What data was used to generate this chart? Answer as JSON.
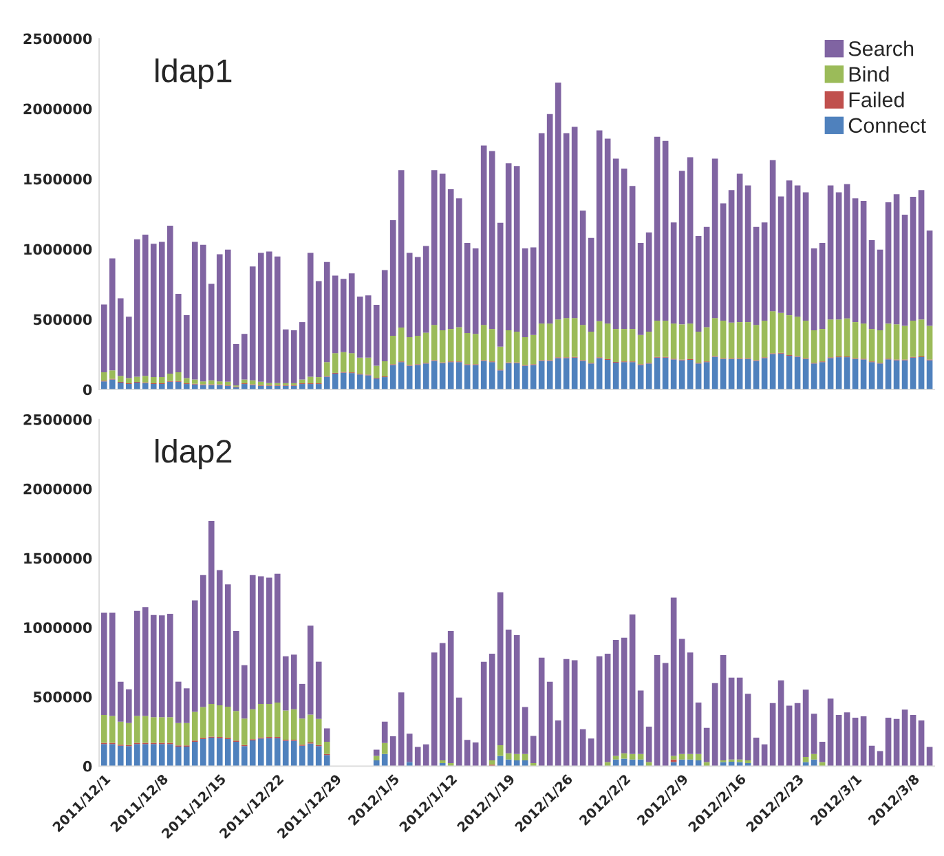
{
  "chart_data": [
    {
      "type": "bar",
      "title": "ldap1",
      "stacked": true,
      "legend": "top right",
      "tick_labels": "y",
      "categories": [
        "2011/12/1",
        null,
        null,
        null,
        null,
        null,
        null,
        "2011/12/8",
        null,
        null,
        null,
        null,
        null,
        null,
        "2011/12/15",
        null,
        null,
        null,
        null,
        null,
        null,
        "2011/12/22",
        null,
        null,
        null,
        null,
        null,
        null,
        "2011/12/29",
        null,
        null,
        null,
        null,
        null,
        null,
        "2012/1/5",
        null,
        null,
        null,
        null,
        null,
        null,
        "2012/1/12",
        null,
        null,
        null,
        null,
        null,
        null,
        "2012/1/19",
        null,
        null,
        null,
        null,
        null,
        null,
        "2012/1/26",
        null,
        null,
        null,
        null,
        null,
        null,
        "2012/2/2",
        null,
        null,
        null,
        null,
        null,
        null,
        "2012/2/9",
        null,
        null,
        null,
        null,
        null,
        null,
        "2012/2/16",
        null,
        null,
        null,
        null,
        null,
        null,
        "2012/2/23",
        null,
        null,
        null,
        null,
        null,
        null,
        "2012/3/1",
        null,
        null,
        null,
        null,
        null,
        null,
        "2012/3/8",
        null,
        null
      ],
      "ylim": [
        0,
        2500000
      ],
      "yticks": [
        0,
        500000,
        1000000,
        1500000,
        2000000,
        2500000
      ],
      "series": [
        {
          "name": "Connect",
          "color": "#4f81bd",
          "values": [
            58000,
            71000,
            49000,
            39000,
            49000,
            45000,
            39000,
            39000,
            55000,
            55000,
            39000,
            36000,
            32000,
            32000,
            32000,
            26000,
            16000,
            39000,
            32000,
            26000,
            26000,
            26000,
            26000,
            26000,
            39000,
            39000,
            39000,
            91000,
            113000,
            120000,
            117000,
            107000,
            101000,
            78000,
            88000,
            175000,
            195000,
            169000,
            175000,
            185000,
            204000,
            188000,
            195000,
            195000,
            175000,
            175000,
            204000,
            195000,
            136000,
            188000,
            188000,
            169000,
            175000,
            204000,
            204000,
            224000,
            224000,
            227000,
            204000,
            185000,
            224000,
            211000,
            191000,
            195000,
            195000,
            175000,
            185000,
            227000,
            227000,
            214000,
            208000,
            211000,
            185000,
            195000,
            233000,
            217000,
            217000,
            217000,
            217000,
            204000,
            224000,
            253000,
            256000,
            240000,
            233000,
            217000,
            185000,
            195000,
            224000,
            230000,
            230000,
            217000,
            214000,
            195000,
            185000,
            214000,
            208000,
            208000,
            227000,
            230000,
            208000
          ]
        },
        {
          "name": "Failed",
          "color": "#c0504d",
          "values": [
            5000,
            5000,
            5000,
            5000,
            5000,
            5000,
            5000,
            5000,
            5000,
            5000,
            5000,
            5000,
            5000,
            5000,
            5000,
            5000,
            5000,
            5000,
            5000,
            5000,
            5000,
            5000,
            5000,
            5000,
            5000,
            5000,
            5000,
            5000,
            5000,
            5000,
            5000,
            5000,
            5000,
            5000,
            5000,
            5000,
            5000,
            5000,
            5000,
            5000,
            5000,
            5000,
            5000,
            5000,
            5000,
            5000,
            5000,
            5000,
            5000,
            5000,
            5000,
            5000,
            5000,
            5000,
            5000,
            5000,
            5000,
            5000,
            5000,
            5000,
            5000,
            5000,
            5000,
            5000,
            5000,
            5000,
            5000,
            5000,
            5000,
            5000,
            5000,
            5000,
            5000,
            5000,
            5000,
            5000,
            5000,
            5000,
            5000,
            5000,
            5000,
            5000,
            5000,
            5000,
            5000,
            5000,
            5000,
            5000,
            5000,
            5000,
            5000,
            5000,
            5000,
            5000,
            5000,
            5000,
            5000,
            5000,
            5000,
            5000,
            5000
          ]
        },
        {
          "name": "Bind",
          "color": "#9bbb59",
          "values": [
            60000,
            60000,
            43000,
            37000,
            37000,
            47000,
            44000,
            44000,
            53000,
            63000,
            37000,
            30000,
            21000,
            28000,
            21000,
            24000,
            8000,
            27000,
            28000,
            24000,
            14000,
            14000,
            14000,
            14000,
            27000,
            47000,
            44000,
            99000,
            141000,
            141000,
            137000,
            115000,
            121000,
            86000,
            108000,
            203000,
            241000,
            199000,
            203000,
            215000,
            251000,
            229000,
            231000,
            244000,
            222000,
            216000,
            251000,
            231000,
            164000,
            229000,
            219000,
            199000,
            209000,
            261000,
            261000,
            270000,
            280000,
            277000,
            251000,
            222000,
            257000,
            254000,
            235000,
            231000,
            231000,
            209000,
            222000,
            258000,
            258000,
            251000,
            251000,
            254000,
            222000,
            244000,
            271000,
            268000,
            255000,
            258000,
            258000,
            251000,
            261000,
            300000,
            284000,
            284000,
            281000,
            268000,
            232000,
            231000,
            270000,
            264000,
            271000,
            258000,
            251000,
            231000,
            232000,
            251000,
            251000,
            241000,
            258000,
            264000,
            241000
          ]
        },
        {
          "name": "Search",
          "color": "#8064a2",
          "values": [
            483000,
            798000,
            552000,
            438000,
            979000,
            1006000,
            950000,
            963000,
            1054000,
            558000,
            448000,
            980000,
            973000,
            687000,
            905000,
            941000,
            295000,
            325000,
            811000,
            918000,
            938000,
            902000,
            383000,
            377000,
            409000,
            882000,
            684000,
            713000,
            552000,
            522000,
            568000,
            435000,
            444000,
            434000,
            649000,
            823000,
            1122000,
            600000,
            561000,
            617000,
            1103000,
            1115000,
            996000,
            918000,
            642000,
            609000,
            1278000,
            1268000,
            882000,
            1190000,
            1180000,
            632000,
            623000,
            1356000,
            1492000,
            1687000,
            1317000,
            1362000,
            814000,
            668000,
            1359000,
            1317000,
            1213000,
            1142000,
            1019000,
            655000,
            707000,
            1310000,
            1281000,
            720000,
            1093000,
            1184000,
            681000,
            714000,
            1135000,
            836000,
            943000,
            1057000,
            973000,
            698000,
            700000,
            1076000,
            830000,
            960000,
            934000,
            914000,
            583000,
            613000,
            954000,
            905000,
            957000,
            882000,
            873000,
            633000,
            574000,
            863000,
            927000,
            791000,
            882000,
            921000,
            678000
          ]
        }
      ]
    },
    {
      "type": "bar",
      "title": "ldap2",
      "stacked": true,
      "categories": [
        "2011/12/1",
        null,
        null,
        null,
        null,
        null,
        null,
        "2011/12/8",
        null,
        null,
        null,
        null,
        null,
        null,
        "2011/12/15",
        null,
        null,
        null,
        null,
        null,
        null,
        "2011/12/22",
        null,
        null,
        null,
        null,
        null,
        null,
        "2011/12/29",
        null,
        null,
        null,
        null,
        null,
        null,
        "2012/1/5",
        null,
        null,
        null,
        null,
        null,
        null,
        "2012/1/12",
        null,
        null,
        null,
        null,
        null,
        null,
        "2012/1/19",
        null,
        null,
        null,
        null,
        null,
        null,
        "2012/1/26",
        null,
        null,
        null,
        null,
        null,
        null,
        "2012/2/2",
        null,
        null,
        null,
        null,
        null,
        null,
        "2012/2/9",
        null,
        null,
        null,
        null,
        null,
        null,
        "2012/2/16",
        null,
        null,
        null,
        null,
        null,
        null,
        "2012/2/23",
        null,
        null,
        null,
        null,
        null,
        null,
        "2012/3/1",
        null,
        null,
        null,
        null,
        null,
        null,
        "2012/3/8",
        null,
        null
      ],
      "ylim": [
        0,
        2500000
      ],
      "yticks": [
        0,
        500000,
        1000000,
        1500000,
        2000000,
        2500000
      ],
      "series": [
        {
          "color": "#4f81bd",
          "values": [
            160000,
            160000,
            147000,
            144000,
            160000,
            160000,
            160000,
            160000,
            160000,
            141000,
            141000,
            176000,
            196000,
            205000,
            202000,
            196000,
            176000,
            144000,
            186000,
            199000,
            202000,
            202000,
            183000,
            183000,
            147000,
            163000,
            144000,
            80000,
            null,
            null,
            null,
            null,
            null,
            42000,
            87000,
            0,
            0,
            29000,
            0,
            0,
            0,
            22000,
            0,
            0,
            0,
            0,
            0,
            0,
            74000,
            48000,
            42000,
            42000,
            0,
            0,
            0,
            0,
            0,
            0,
            0,
            0,
            0,
            0,
            48000,
            54000,
            48000,
            48000,
            0,
            0,
            0,
            29000,
            48000,
            48000,
            42000,
            0,
            0,
            29000,
            32000,
            29000,
            22000,
            0,
            0,
            0,
            0,
            0,
            0,
            29000,
            48000,
            0,
            0,
            0,
            0,
            0,
            0,
            0,
            0,
            0,
            0,
            0,
            0,
            0,
            0
          ]
        },
        {
          "color": "#c0504d",
          "values": [
            8000,
            8000,
            8000,
            8000,
            8000,
            8000,
            8000,
            8000,
            8000,
            8000,
            8000,
            8000,
            8000,
            8000,
            8000,
            8000,
            8000,
            8000,
            8000,
            8000,
            8000,
            8000,
            8000,
            8000,
            8000,
            8000,
            8000,
            8000,
            null,
            null,
            null,
            null,
            null,
            0,
            0,
            0,
            0,
            0,
            0,
            0,
            0,
            0,
            0,
            0,
            0,
            0,
            0,
            10000,
            0,
            0,
            0,
            0,
            0,
            0,
            0,
            0,
            0,
            0,
            0,
            0,
            0,
            0,
            0,
            0,
            0,
            0,
            0,
            0,
            0,
            19000,
            0,
            0,
            0,
            0,
            0,
            0,
            0,
            0,
            0,
            0,
            0,
            0,
            0,
            0,
            0,
            0,
            0,
            0,
            0,
            0,
            0,
            0,
            0,
            0,
            0,
            0,
            0,
            0,
            0,
            0,
            0
          ]
        },
        {
          "color": "#9bbb59",
          "values": [
            201000,
            194000,
            166000,
            159000,
            194000,
            194000,
            185000,
            185000,
            185000,
            162000,
            162000,
            207000,
            222000,
            236000,
            229000,
            225000,
            213000,
            191000,
            216000,
            242000,
            239000,
            248000,
            210000,
            219000,
            188000,
            201000,
            188000,
            88000,
            null,
            null,
            null,
            null,
            null,
            32000,
            80000,
            0,
            0,
            0,
            0,
            0,
            0,
            20000,
            22000,
            0,
            0,
            0,
            0,
            32000,
            77000,
            45000,
            45000,
            45000,
            22000,
            0,
            0,
            0,
            0,
            0,
            0,
            0,
            0,
            29000,
            26000,
            39000,
            39000,
            39000,
            29000,
            0,
            0,
            26000,
            39000,
            39000,
            45000,
            29000,
            0,
            13000,
            16000,
            19000,
            20000,
            0,
            0,
            0,
            0,
            0,
            0,
            38000,
            39000,
            29000,
            0,
            0,
            0,
            0,
            0,
            0,
            0,
            0,
            0,
            0,
            0,
            0,
            0
          ]
        },
        {
          "color": "#8064a2",
          "values": [
            737000,
            744000,
            288000,
            243000,
            757000,
            785000,
            737000,
            734000,
            746000,
            298000,
            250000,
            804000,
            952000,
            1320000,
            974000,
            882000,
            577000,
            385000,
            968000,
            920000,
            910000,
            930000,
            391000,
            394000,
            250000,
            641000,
            413000,
            96000,
            null,
            null,
            null,
            null,
            null,
            45000,
            154000,
            215000,
            532000,
            205000,
            138000,
            157000,
            820000,
            846000,
            952000,
            494000,
            189000,
            170000,
            753000,
            769000,
            1102000,
            891000,
            858000,
            339000,
            196000,
            782000,
            609000,
            330000,
            772000,
            763000,
            266000,
            199000,
            792000,
            782000,
            836000,
            833000,
            1006000,
            458000,
            256000,
            801000,
            744000,
            1141000,
            830000,
            733000,
            371000,
            247000,
            599000,
            759000,
            590000,
            590000,
            480000,
            205000,
            157000,
            455000,
            619000,
            436000,
            455000,
            484000,
            291000,
            147000,
            487000,
            369000,
            388000,
            349000,
            359000,
            147000,
            109000,
            349000,
            340000,
            407000,
            369000,
            330000,
            138000
          ]
        }
      ]
    }
  ]
}
